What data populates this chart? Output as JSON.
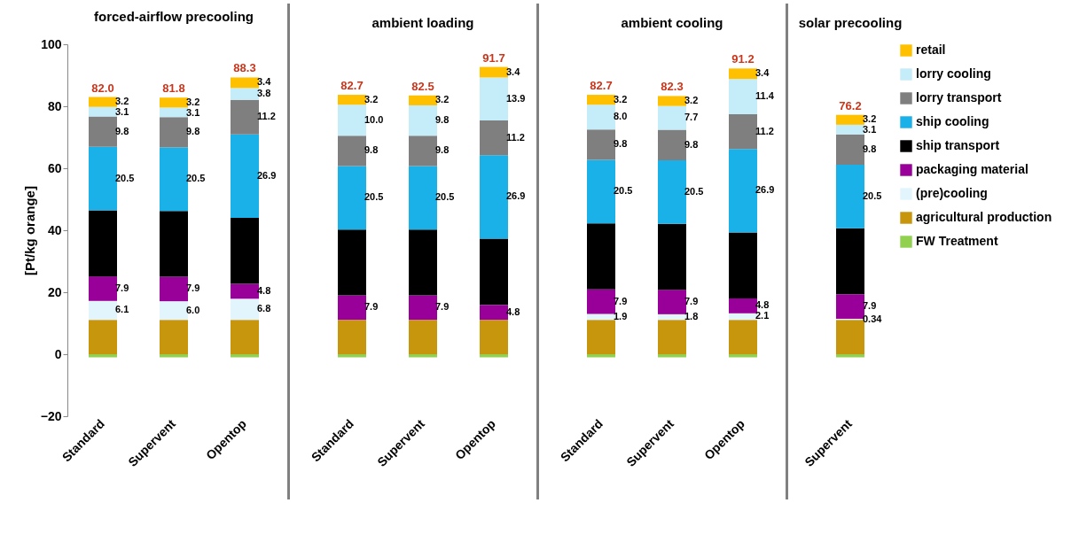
{
  "chart_data": [
    {
      "type": "bar",
      "stacked": true,
      "title": "forced-airflow precooling",
      "ylabel": "[Pt/kg orange]",
      "categories": [
        "Standard",
        "Supervent",
        "Opentop"
      ],
      "ylim": [
        -20,
        100
      ],
      "yticks": [
        -20,
        0,
        20,
        40,
        60,
        80,
        100
      ],
      "totals": [
        "82.0",
        "81.8",
        "88.3"
      ],
      "series": [
        {
          "color": "#92d050",
          "values": [
            -1,
            -1,
            -1
          ]
        },
        {
          "color": "#c8960c",
          "values": [
            11.1,
            11.1,
            11.1
          ]
        },
        {
          "color": "#e3f5fc",
          "values": [
            6.1,
            6.0,
            6.8
          ],
          "value_labels": [
            "6.1",
            "6.0",
            "6.8"
          ]
        },
        {
          "color": "#990099",
          "values": [
            7.9,
            7.9,
            4.8
          ],
          "value_labels": [
            "7.9",
            "7.9",
            "4.8"
          ]
        },
        {
          "color": "#000000",
          "values": [
            21.3,
            21.2,
            21.3
          ]
        },
        {
          "color": "#1ab0e8",
          "values": [
            20.5,
            20.5,
            26.9
          ],
          "value_labels": [
            "20.5",
            "20.5",
            "26.9"
          ]
        },
        {
          "color": "#7f7f7f",
          "values": [
            9.8,
            9.8,
            11.2
          ],
          "value_labels": [
            "9.8",
            "9.8",
            "11.2"
          ]
        },
        {
          "color": "#c5ecf9",
          "values": [
            3.1,
            3.1,
            3.8
          ],
          "value_labels": [
            "3.1",
            "3.1",
            "3.8"
          ]
        },
        {
          "color": "#ffc000",
          "values": [
            3.2,
            3.2,
            3.4
          ],
          "value_labels": [
            "3.2",
            "3.2",
            "3.4"
          ]
        }
      ]
    },
    {
      "type": "bar",
      "stacked": true,
      "title": "ambient loading",
      "tick_labels": "x",
      "categories": [
        "Standard",
        "Supervent",
        "Opentop"
      ],
      "ylim": [
        -20,
        100
      ],
      "yticks": [
        -20,
        0,
        20,
        40,
        60,
        80,
        100
      ],
      "totals": [
        "82.7",
        "82.5",
        "91.7"
      ],
      "series": [
        {
          "color": "#92d050",
          "values": [
            -1,
            -1,
            -1
          ]
        },
        {
          "color": "#c8960c",
          "values": [
            11.1,
            11.1,
            11.1
          ]
        },
        {
          "color": "#e3f5fc",
          "values": [
            null,
            null,
            null
          ]
        },
        {
          "color": "#990099",
          "values": [
            7.9,
            7.9,
            4.8
          ],
          "value_labels": [
            "7.9",
            "7.9",
            "4.8"
          ]
        },
        {
          "color": "#000000",
          "values": [
            21.2,
            21.2,
            21.4
          ]
        },
        {
          "color": "#1ab0e8",
          "values": [
            20.5,
            20.5,
            26.9
          ],
          "value_labels": [
            "20.5",
            "20.5",
            "26.9"
          ]
        },
        {
          "color": "#7f7f7f",
          "values": [
            9.8,
            9.8,
            11.2
          ],
          "value_labels": [
            "9.8",
            "9.8",
            "11.2"
          ]
        },
        {
          "color": "#c5ecf9",
          "values": [
            10.0,
            9.8,
            13.9
          ],
          "value_labels": [
            "10.0",
            "9.8",
            "13.9"
          ]
        },
        {
          "color": "#ffc000",
          "values": [
            3.2,
            3.2,
            3.4
          ],
          "value_labels": [
            "3.2",
            "3.2",
            "3.4"
          ]
        }
      ]
    },
    {
      "type": "bar",
      "stacked": true,
      "title": "ambient cooling",
      "tick_labels": "x",
      "categories": [
        "Standard",
        "Supervent",
        "Opentop"
      ],
      "ylim": [
        -20,
        100
      ],
      "yticks": [
        -20,
        0,
        20,
        40,
        60,
        80,
        100
      ],
      "totals": [
        "82.7",
        "82.3",
        "91.2"
      ],
      "series": [
        {
          "color": "#92d050",
          "values": [
            -1,
            -1,
            -1
          ]
        },
        {
          "color": "#c8960c",
          "values": [
            11.1,
            11.1,
            11.1
          ]
        },
        {
          "color": "#e3f5fc",
          "values": [
            1.9,
            1.8,
            2.1
          ],
          "value_labels": [
            "1.9",
            "1.8",
            "2.1"
          ]
        },
        {
          "color": "#990099",
          "values": [
            7.9,
            7.9,
            4.8
          ],
          "value_labels": [
            "7.9",
            "7.9",
            "4.8"
          ]
        },
        {
          "color": "#000000",
          "values": [
            21.3,
            21.3,
            21.3
          ]
        },
        {
          "color": "#1ab0e8",
          "values": [
            20.5,
            20.5,
            26.9
          ],
          "value_labels": [
            "20.5",
            "20.5",
            "26.9"
          ]
        },
        {
          "color": "#7f7f7f",
          "values": [
            9.8,
            9.8,
            11.2
          ],
          "value_labels": [
            "9.8",
            "9.8",
            "11.2"
          ]
        },
        {
          "color": "#c5ecf9",
          "values": [
            8.0,
            7.7,
            11.4
          ],
          "value_labels": [
            "8.0",
            "7.7",
            "11.4"
          ]
        },
        {
          "color": "#ffc000",
          "values": [
            3.2,
            3.2,
            3.4
          ],
          "value_labels": [
            "3.2",
            "3.2",
            "3.4"
          ]
        }
      ]
    },
    {
      "type": "bar",
      "stacked": true,
      "title": "solar precooling",
      "tick_labels": "x",
      "legend": "right",
      "categories": [
        "Supervent"
      ],
      "ylim": [
        -20,
        100
      ],
      "yticks": [
        -20,
        0,
        20,
        40,
        60,
        80,
        100
      ],
      "totals": [
        "76.2"
      ],
      "series": [
        {
          "name": "FW Treatment",
          "color": "#92d050",
          "values": [
            -1
          ]
        },
        {
          "name": "agricultural production",
          "color": "#c8960c",
          "values": [
            11.1
          ]
        },
        {
          "name": "(pre)cooling",
          "color": "#e3f5fc",
          "values": [
            0.34
          ],
          "value_labels": [
            "0.34"
          ]
        },
        {
          "name": "packaging material",
          "color": "#990099",
          "values": [
            7.9
          ],
          "value_labels": [
            "7.9"
          ]
        },
        {
          "name": "ship transport",
          "color": "#000000",
          "values": [
            21.3
          ]
        },
        {
          "name": "ship cooling",
          "color": "#1ab0e8",
          "values": [
            20.5
          ],
          "value_labels": [
            "20.5"
          ]
        },
        {
          "name": "lorry transport",
          "color": "#7f7f7f",
          "values": [
            9.8
          ],
          "value_labels": [
            "9.8"
          ]
        },
        {
          "name": "lorry cooling",
          "color": "#c5ecf9",
          "values": [
            3.1
          ],
          "value_labels": [
            "3.1"
          ]
        },
        {
          "name": "retail",
          "color": "#ffc000",
          "values": [
            3.2
          ],
          "value_labels": [
            "3.2"
          ]
        }
      ]
    }
  ]
}
